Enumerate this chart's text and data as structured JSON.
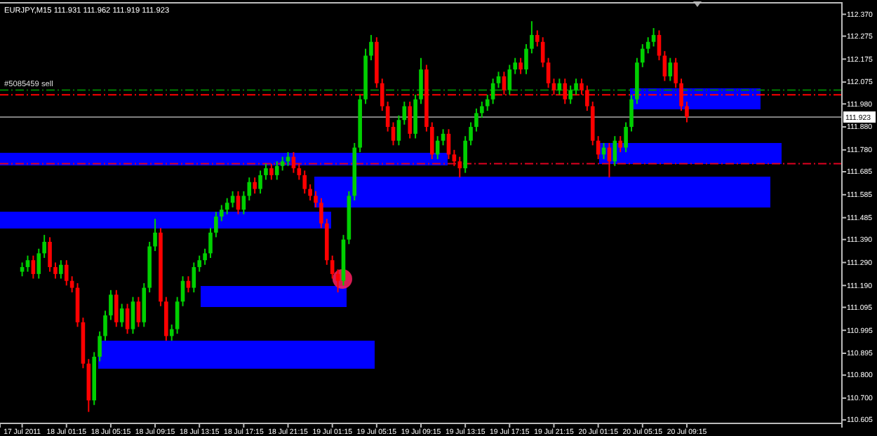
{
  "chart_data": {
    "type": "candlestick",
    "title": "EURJPY,M15  111.931 111.962 111.919 111.923",
    "x": [
      "2011-07-17T21:15",
      "2011-07-17T21:45",
      "2011-07-17T22:15",
      "2011-07-17T22:45",
      "2011-07-17T23:15",
      "2011-07-17T23:45",
      "2011-07-18T00:15",
      "2011-07-18T00:45",
      "2011-07-18T01:15",
      "2011-07-18T01:45",
      "2011-07-18T02:15",
      "2011-07-18T02:45",
      "2011-07-18T03:15",
      "2011-07-18T03:45",
      "2011-07-18T04:15",
      "2011-07-18T04:45",
      "2011-07-18T05:15",
      "2011-07-18T05:45",
      "2011-07-18T06:15",
      "2011-07-18T06:45",
      "2011-07-18T07:15",
      "2011-07-18T07:45",
      "2011-07-18T08:15",
      "2011-07-18T08:45",
      "2011-07-18T09:15",
      "2011-07-18T09:45",
      "2011-07-18T10:15",
      "2011-07-18T10:45",
      "2011-07-18T11:15",
      "2011-07-18T11:45",
      "2011-07-18T12:15",
      "2011-07-18T12:45",
      "2011-07-18T13:15",
      "2011-07-18T13:45",
      "2011-07-18T14:15",
      "2011-07-18T14:45",
      "2011-07-18T15:15",
      "2011-07-18T15:45",
      "2011-07-18T16:15",
      "2011-07-18T16:45",
      "2011-07-18T17:15",
      "2011-07-18T17:45",
      "2011-07-18T18:15",
      "2011-07-18T18:45",
      "2011-07-18T19:15",
      "2011-07-18T19:45",
      "2011-07-18T20:15",
      "2011-07-18T20:45",
      "2011-07-18T21:15",
      "2011-07-18T21:45",
      "2011-07-18T22:15",
      "2011-07-18T22:45",
      "2011-07-18T23:15",
      "2011-07-18T23:45",
      "2011-07-19T00:15",
      "2011-07-19T00:45",
      "2011-07-19T01:15",
      "2011-07-19T01:45",
      "2011-07-19T02:15",
      "2011-07-19T02:45",
      "2011-07-19T03:15",
      "2011-07-19T03:45",
      "2011-07-19T04:15",
      "2011-07-19T04:45",
      "2011-07-19T05:15",
      "2011-07-19T05:45",
      "2011-07-19T06:15",
      "2011-07-19T06:45",
      "2011-07-19T07:15",
      "2011-07-19T07:45",
      "2011-07-19T08:15",
      "2011-07-19T08:45",
      "2011-07-19T09:15",
      "2011-07-19T09:45",
      "2011-07-19T10:15",
      "2011-07-19T10:45",
      "2011-07-19T11:15",
      "2011-07-19T11:45",
      "2011-07-19T12:15",
      "2011-07-19T12:45",
      "2011-07-19T13:15",
      "2011-07-19T13:45",
      "2011-07-19T14:15",
      "2011-07-19T14:45",
      "2011-07-19T15:15",
      "2011-07-19T15:45",
      "2011-07-19T16:15",
      "2011-07-19T16:45",
      "2011-07-19T17:15",
      "2011-07-19T17:45",
      "2011-07-19T18:15",
      "2011-07-19T18:45",
      "2011-07-19T19:15",
      "2011-07-19T19:45",
      "2011-07-19T20:15",
      "2011-07-19T20:45",
      "2011-07-19T21:15",
      "2011-07-19T21:45",
      "2011-07-19T22:15",
      "2011-07-19T22:45",
      "2011-07-19T23:15",
      "2011-07-19T23:45",
      "2011-07-20T00:15",
      "2011-07-20T00:45",
      "2011-07-20T01:15",
      "2011-07-20T01:45",
      "2011-07-20T02:15",
      "2011-07-20T02:45",
      "2011-07-20T03:15",
      "2011-07-20T03:45",
      "2011-07-20T04:15",
      "2011-07-20T04:45",
      "2011-07-20T05:15",
      "2011-07-20T05:45",
      "2011-07-20T06:15",
      "2011-07-20T06:45",
      "2011-07-20T07:15",
      "2011-07-20T07:45",
      "2011-07-20T08:15",
      "2011-07-20T08:45",
      "2011-07-20T09:15"
    ],
    "ohlc": [
      [
        111.25,
        111.29,
        111.23,
        111.27
      ],
      [
        111.27,
        111.32,
        111.25,
        111.3
      ],
      [
        111.3,
        111.32,
        111.22,
        111.24
      ],
      [
        111.24,
        111.35,
        111.22,
        111.33
      ],
      [
        111.33,
        111.41,
        111.31,
        111.38
      ],
      [
        111.38,
        111.4,
        111.25,
        111.27
      ],
      [
        111.27,
        111.29,
        111.22,
        111.24
      ],
      [
        111.24,
        111.3,
        111.22,
        111.28
      ],
      [
        111.28,
        111.3,
        111.19,
        111.21
      ],
      [
        111.21,
        111.23,
        111.16,
        111.18
      ],
      [
        111.18,
        111.2,
        111.01,
        111.03
      ],
      [
        111.03,
        111.05,
        110.83,
        110.85
      ],
      [
        110.85,
        110.87,
        110.64,
        110.69
      ],
      [
        110.69,
        110.9,
        110.67,
        110.88
      ],
      [
        110.88,
        110.99,
        110.86,
        110.97
      ],
      [
        110.97,
        111.08,
        110.95,
        111.06
      ],
      [
        111.06,
        111.17,
        111.04,
        111.15
      ],
      [
        111.15,
        111.17,
        111.01,
        111.03
      ],
      [
        111.03,
        111.11,
        111.01,
        111.09
      ],
      [
        111.09,
        111.11,
        110.98,
        111.0
      ],
      [
        111.0,
        111.14,
        110.98,
        111.12
      ],
      [
        111.12,
        111.14,
        111.01,
        111.03
      ],
      [
        111.03,
        111.2,
        111.01,
        111.18
      ],
      [
        111.18,
        111.38,
        111.16,
        111.36
      ],
      [
        111.36,
        111.48,
        111.34,
        111.42
      ],
      [
        111.42,
        111.44,
        111.1,
        111.12
      ],
      [
        111.12,
        111.14,
        110.95,
        110.97
      ],
      [
        110.97,
        111.02,
        110.95,
        111.0
      ],
      [
        111.0,
        111.14,
        110.98,
        111.12
      ],
      [
        111.12,
        111.23,
        111.1,
        111.21
      ],
      [
        111.21,
        111.23,
        111.16,
        111.18
      ],
      [
        111.18,
        111.29,
        111.16,
        111.27
      ],
      [
        111.27,
        111.32,
        111.25,
        111.3
      ],
      [
        111.3,
        111.35,
        111.28,
        111.33
      ],
      [
        111.33,
        111.44,
        111.31,
        111.42
      ],
      [
        111.42,
        111.51,
        111.4,
        111.49
      ],
      [
        111.49,
        111.54,
        111.47,
        111.52
      ],
      [
        111.52,
        111.57,
        111.5,
        111.55
      ],
      [
        111.55,
        111.6,
        111.53,
        111.58
      ],
      [
        111.58,
        111.6,
        111.5,
        111.52
      ],
      [
        111.52,
        111.6,
        111.5,
        111.58
      ],
      [
        111.58,
        111.66,
        111.56,
        111.64
      ],
      [
        111.64,
        111.66,
        111.59,
        111.61
      ],
      [
        111.61,
        111.69,
        111.59,
        111.67
      ],
      [
        111.67,
        111.72,
        111.65,
        111.7
      ],
      [
        111.7,
        111.72,
        111.65,
        111.67
      ],
      [
        111.67,
        111.73,
        111.65,
        111.71
      ],
      [
        111.71,
        111.75,
        111.69,
        111.73
      ],
      [
        111.73,
        111.77,
        111.71,
        111.75
      ],
      [
        111.75,
        111.77,
        111.68,
        111.7
      ],
      [
        111.7,
        111.72,
        111.65,
        111.67
      ],
      [
        111.67,
        111.69,
        111.59,
        111.61
      ],
      [
        111.61,
        111.63,
        111.56,
        111.58
      ],
      [
        111.58,
        111.6,
        111.53,
        111.55
      ],
      [
        111.55,
        111.57,
        111.44,
        111.46
      ],
      [
        111.46,
        111.48,
        111.28,
        111.3
      ],
      [
        111.3,
        111.32,
        111.22,
        111.24
      ],
      [
        111.24,
        111.26,
        111.16,
        111.21
      ],
      [
        111.21,
        111.41,
        111.19,
        111.39
      ],
      [
        111.39,
        111.6,
        111.37,
        111.58
      ],
      [
        111.58,
        111.81,
        111.56,
        111.79
      ],
      [
        111.79,
        112.02,
        111.77,
        112.0
      ],
      [
        112.0,
        112.22,
        111.98,
        112.19
      ],
      [
        112.19,
        112.28,
        112.17,
        112.25
      ],
      [
        112.25,
        112.27,
        112.05,
        112.07
      ],
      [
        112.07,
        112.09,
        111.95,
        111.97
      ],
      [
        111.97,
        111.99,
        111.86,
        111.88
      ],
      [
        111.88,
        111.9,
        111.8,
        111.82
      ],
      [
        111.82,
        111.93,
        111.8,
        111.91
      ],
      [
        111.91,
        111.99,
        111.89,
        111.97
      ],
      [
        111.97,
        111.99,
        111.83,
        111.85
      ],
      [
        111.85,
        112.02,
        111.83,
        112.0
      ],
      [
        112.0,
        112.18,
        111.98,
        112.13
      ],
      [
        112.13,
        112.15,
        111.86,
        111.88
      ],
      [
        111.88,
        111.9,
        111.74,
        111.76
      ],
      [
        111.76,
        111.84,
        111.74,
        111.82
      ],
      [
        111.82,
        111.87,
        111.8,
        111.85
      ],
      [
        111.85,
        111.87,
        111.74,
        111.76
      ],
      [
        111.76,
        111.78,
        111.71,
        111.73
      ],
      [
        111.73,
        111.75,
        111.66,
        111.7
      ],
      [
        111.7,
        111.84,
        111.68,
        111.82
      ],
      [
        111.82,
        111.9,
        111.8,
        111.88
      ],
      [
        111.88,
        111.96,
        111.86,
        111.94
      ],
      [
        111.94,
        111.99,
        111.92,
        111.97
      ],
      [
        111.97,
        112.02,
        111.95,
        112.0
      ],
      [
        112.0,
        112.09,
        111.98,
        112.07
      ],
      [
        112.07,
        112.12,
        112.05,
        112.1
      ],
      [
        112.1,
        112.12,
        112.02,
        112.04
      ],
      [
        112.04,
        112.15,
        112.02,
        112.13
      ],
      [
        112.13,
        112.18,
        112.11,
        112.16
      ],
      [
        112.16,
        112.18,
        112.11,
        112.13
      ],
      [
        112.13,
        112.24,
        112.11,
        112.22
      ],
      [
        112.22,
        112.34,
        112.2,
        112.28
      ],
      [
        112.28,
        112.3,
        112.23,
        112.25
      ],
      [
        112.25,
        112.27,
        112.14,
        112.16
      ],
      [
        112.16,
        112.18,
        112.05,
        112.07
      ],
      [
        112.07,
        112.09,
        112.02,
        112.04
      ],
      [
        112.04,
        112.09,
        112.02,
        112.07
      ],
      [
        112.07,
        112.09,
        111.98,
        112.0
      ],
      [
        112.0,
        112.06,
        111.98,
        112.04
      ],
      [
        112.04,
        112.09,
        112.02,
        112.07
      ],
      [
        112.07,
        112.09,
        112.02,
        112.04
      ],
      [
        112.04,
        112.06,
        111.95,
        111.97
      ],
      [
        111.97,
        111.99,
        111.8,
        111.82
      ],
      [
        111.82,
        111.84,
        111.74,
        111.76
      ],
      [
        111.76,
        111.81,
        111.74,
        111.79
      ],
      [
        111.79,
        111.81,
        111.66,
        111.73
      ],
      [
        111.73,
        111.84,
        111.71,
        111.82
      ],
      [
        111.82,
        111.84,
        111.77,
        111.79
      ],
      [
        111.79,
        111.9,
        111.77,
        111.88
      ],
      [
        111.88,
        112.02,
        111.86,
        112.0
      ],
      [
        112.0,
        112.18,
        111.98,
        112.16
      ],
      [
        112.16,
        112.24,
        112.14,
        112.22
      ],
      [
        112.22,
        112.27,
        112.2,
        112.25
      ],
      [
        112.25,
        112.31,
        112.23,
        112.28
      ],
      [
        112.28,
        112.3,
        112.17,
        112.19
      ],
      [
        112.19,
        112.21,
        112.08,
        112.1
      ],
      [
        112.1,
        112.18,
        112.08,
        112.16
      ],
      [
        112.16,
        112.18,
        112.05,
        112.07
      ],
      [
        112.07,
        112.09,
        111.95,
        111.97
      ],
      [
        111.97,
        111.99,
        111.9,
        111.923
      ]
    ],
    "colors": [
      "#00d000",
      "#00d000",
      "#ff0000",
      "#00d000",
      "#00d000",
      "#ff0000",
      "#ff0000",
      "#00d000",
      "#ff0000",
      "#ff0000",
      "#ff0000",
      "#ff0000",
      "#ff0000",
      "#00d000",
      "#00d000",
      "#00d000",
      "#00d000",
      "#ff0000",
      "#00d000",
      "#ff0000",
      "#00d000",
      "#ff0000",
      "#00d000",
      "#00d000",
      "#00d000",
      "#ff0000",
      "#ff0000",
      "#00d000",
      "#00d000",
      "#00d000",
      "#ff0000",
      "#00d000",
      "#00d000",
      "#00d000",
      "#00d000",
      "#00d000",
      "#00d000",
      "#00d000",
      "#00d000",
      "#ff0000",
      "#00d000",
      "#00d000",
      "#ff0000",
      "#00d000",
      "#00d000",
      "#ff0000",
      "#00d000",
      "#00d000",
      "#00d000",
      "#ff0000",
      "#ff0000",
      "#ff0000",
      "#ff0000",
      "#ff0000",
      "#ff0000",
      "#ff0000",
      "#ff0000",
      "#ff0000",
      "#00d000",
      "#00d000",
      "#00d000",
      "#00d000",
      "#00d000",
      "#00d000",
      "#ff0000",
      "#ff0000",
      "#ff0000",
      "#ff0000",
      "#00d000",
      "#00d000",
      "#ff0000",
      "#00d000",
      "#00d000",
      "#ff0000",
      "#ff0000",
      "#00d000",
      "#00d000",
      "#ff0000",
      "#ff0000",
      "#ff0000",
      "#00d000",
      "#00d000",
      "#00d000",
      "#00d000",
      "#00d000",
      "#00d000",
      "#00d000",
      "#ff0000",
      "#00d000",
      "#00d000",
      "#ff0000",
      "#00d000",
      "#00d000",
      "#ff0000",
      "#ff0000",
      "#ff0000",
      "#ff0000",
      "#00d000",
      "#ff0000",
      "#00d000",
      "#00d000",
      "#ff0000",
      "#ff0000",
      "#ff0000",
      "#ff0000",
      "#00d000",
      "#ff0000",
      "#00d000",
      "#ff0000",
      "#00d000",
      "#00d000",
      "#00d000",
      "#00d000",
      "#00d000",
      "#00d000",
      "#ff0000",
      "#ff0000",
      "#00d000",
      "#ff0000",
      "#ff0000",
      "#ff0000"
    ],
    "xlim": [
      "2011-07-17T19:15",
      "2011-07-20T23:15"
    ],
    "xticks": [
      {
        "value": "2011-07-17T21:15",
        "label": "17 Jul 2011"
      },
      {
        "value": "2011-07-18T01:15",
        "label": "18 Jul 01:15"
      },
      {
        "value": "2011-07-18T05:15",
        "label": "18 Jul 05:15"
      },
      {
        "value": "2011-07-18T09:15",
        "label": "18 Jul 09:15"
      },
      {
        "value": "2011-07-18T13:15",
        "label": "18 Jul 13:15"
      },
      {
        "value": "2011-07-18T17:15",
        "label": "18 Jul 17:15"
      },
      {
        "value": "2011-07-18T21:15",
        "label": "18 Jul 21:15"
      },
      {
        "value": "2011-07-19T01:15",
        "label": "19 Jul 01:15"
      },
      {
        "value": "2011-07-19T05:15",
        "label": "19 Jul 05:15"
      },
      {
        "value": "2011-07-19T09:15",
        "label": "19 Jul 09:15"
      },
      {
        "value": "2011-07-19T13:15",
        "label": "19 Jul 13:15"
      },
      {
        "value": "2011-07-19T17:15",
        "label": "19 Jul 17:15"
      },
      {
        "value": "2011-07-19T21:15",
        "label": "19 Jul 21:15"
      },
      {
        "value": "2011-07-20T01:15",
        "label": "20 Jul 01:15"
      },
      {
        "value": "2011-07-20T05:15",
        "label": "20 Jul 05:15"
      },
      {
        "value": "2011-07-20T09:15",
        "label": "20 Jul 09:15"
      }
    ],
    "ylim": [
      110.59,
      112.42
    ],
    "yticks": [
      {
        "value": 112.37,
        "label": "112.370"
      },
      {
        "value": 112.275,
        "label": "112.275"
      },
      {
        "value": 112.175,
        "label": "112.175"
      },
      {
        "value": 112.075,
        "label": "112.075"
      },
      {
        "value": 111.98,
        "label": "111.980"
      },
      {
        "value": 111.88,
        "label": "111.880"
      },
      {
        "value": 111.78,
        "label": "111.780"
      },
      {
        "value": 111.685,
        "label": "111.685"
      },
      {
        "value": 111.585,
        "label": "111.585"
      },
      {
        "value": 111.485,
        "label": "111.485"
      },
      {
        "value": 111.39,
        "label": "111.390"
      },
      {
        "value": 111.29,
        "label": "111.290"
      },
      {
        "value": 111.19,
        "label": "111.190"
      },
      {
        "value": 111.095,
        "label": "111.095"
      },
      {
        "value": 110.995,
        "label": "110.995"
      },
      {
        "value": 110.895,
        "label": "110.895"
      },
      {
        "value": 110.8,
        "label": "110.800"
      },
      {
        "value": 110.7,
        "label": "110.700"
      },
      {
        "value": 110.605,
        "label": "110.605"
      }
    ],
    "ref_lines": [
      {
        "axis": "y",
        "value": 112.04,
        "label": "#5085459 sell",
        "color": "#008000",
        "line_style": "dashed"
      },
      {
        "axis": "y",
        "value": 112.02,
        "color": "#ff0000",
        "line_style": "dashed"
      },
      {
        "axis": "y",
        "value": 111.923,
        "label": "111.923",
        "color": "#808080",
        "line_style": "solid"
      },
      {
        "axis": "y",
        "value": 111.72,
        "color": "#e00020",
        "line_style": "dashed"
      }
    ],
    "grid": false
  }
}
